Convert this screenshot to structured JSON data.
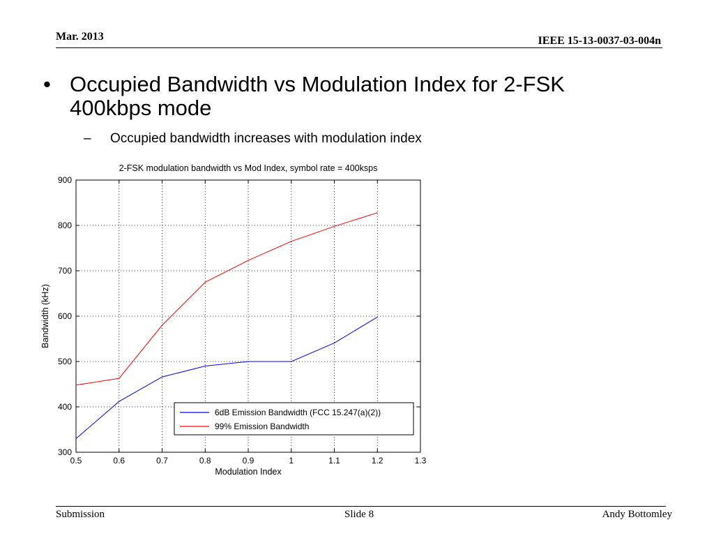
{
  "header": {
    "date": "Mar.  2013",
    "doc_id": "IEEE 15-13-0037-03-004n"
  },
  "bullet": {
    "symbol": "•",
    "text": "Occupied Bandwidth vs Modulation Index for 2-FSK 400kbps mode"
  },
  "sub_bullet": {
    "symbol": "–",
    "text": "Occupied bandwidth increases with modulation index"
  },
  "chart_data": {
    "type": "line",
    "title": "2-FSK modulation bandwidth vs Mod Index, symbol rate = 400ksps",
    "xlabel": "Modulation Index",
    "ylabel": "Bandwidth (kHz)",
    "xlim": [
      0.5,
      1.3
    ],
    "ylim": [
      300,
      900
    ],
    "xticks": [
      0.5,
      0.6,
      0.7,
      0.8,
      0.9,
      1,
      1.1,
      1.2,
      1.3
    ],
    "xtick_labels": [
      "0.5",
      "0.6",
      "0.7",
      "0.8",
      "0.9",
      "1",
      "1.1",
      "1.2",
      "1.3"
    ],
    "yticks": [
      300,
      400,
      500,
      600,
      700,
      800,
      900
    ],
    "ytick_labels": [
      "300",
      "400",
      "500",
      "600",
      "700",
      "800",
      "900"
    ],
    "grid": true,
    "legend_position": "bottom-right",
    "x": [
      0.5,
      0.6,
      0.7,
      0.8,
      0.9,
      1.0,
      1.1,
      1.2
    ],
    "series": [
      {
        "name": "6dB Emission Bandwidth (FCC 15.247(a)(2))",
        "color": "#0000ff",
        "values": [
          330,
          412,
          466,
          490,
          500,
          500,
          541,
          598
        ]
      },
      {
        "name": "99% Emission Bandwidth",
        "color": "#ff0000",
        "values": [
          448,
          463,
          580,
          675,
          723,
          765,
          798,
          828
        ]
      }
    ]
  },
  "footer": {
    "left": "Submission",
    "center": "Slide 8",
    "right": "Andy Bottomley"
  }
}
